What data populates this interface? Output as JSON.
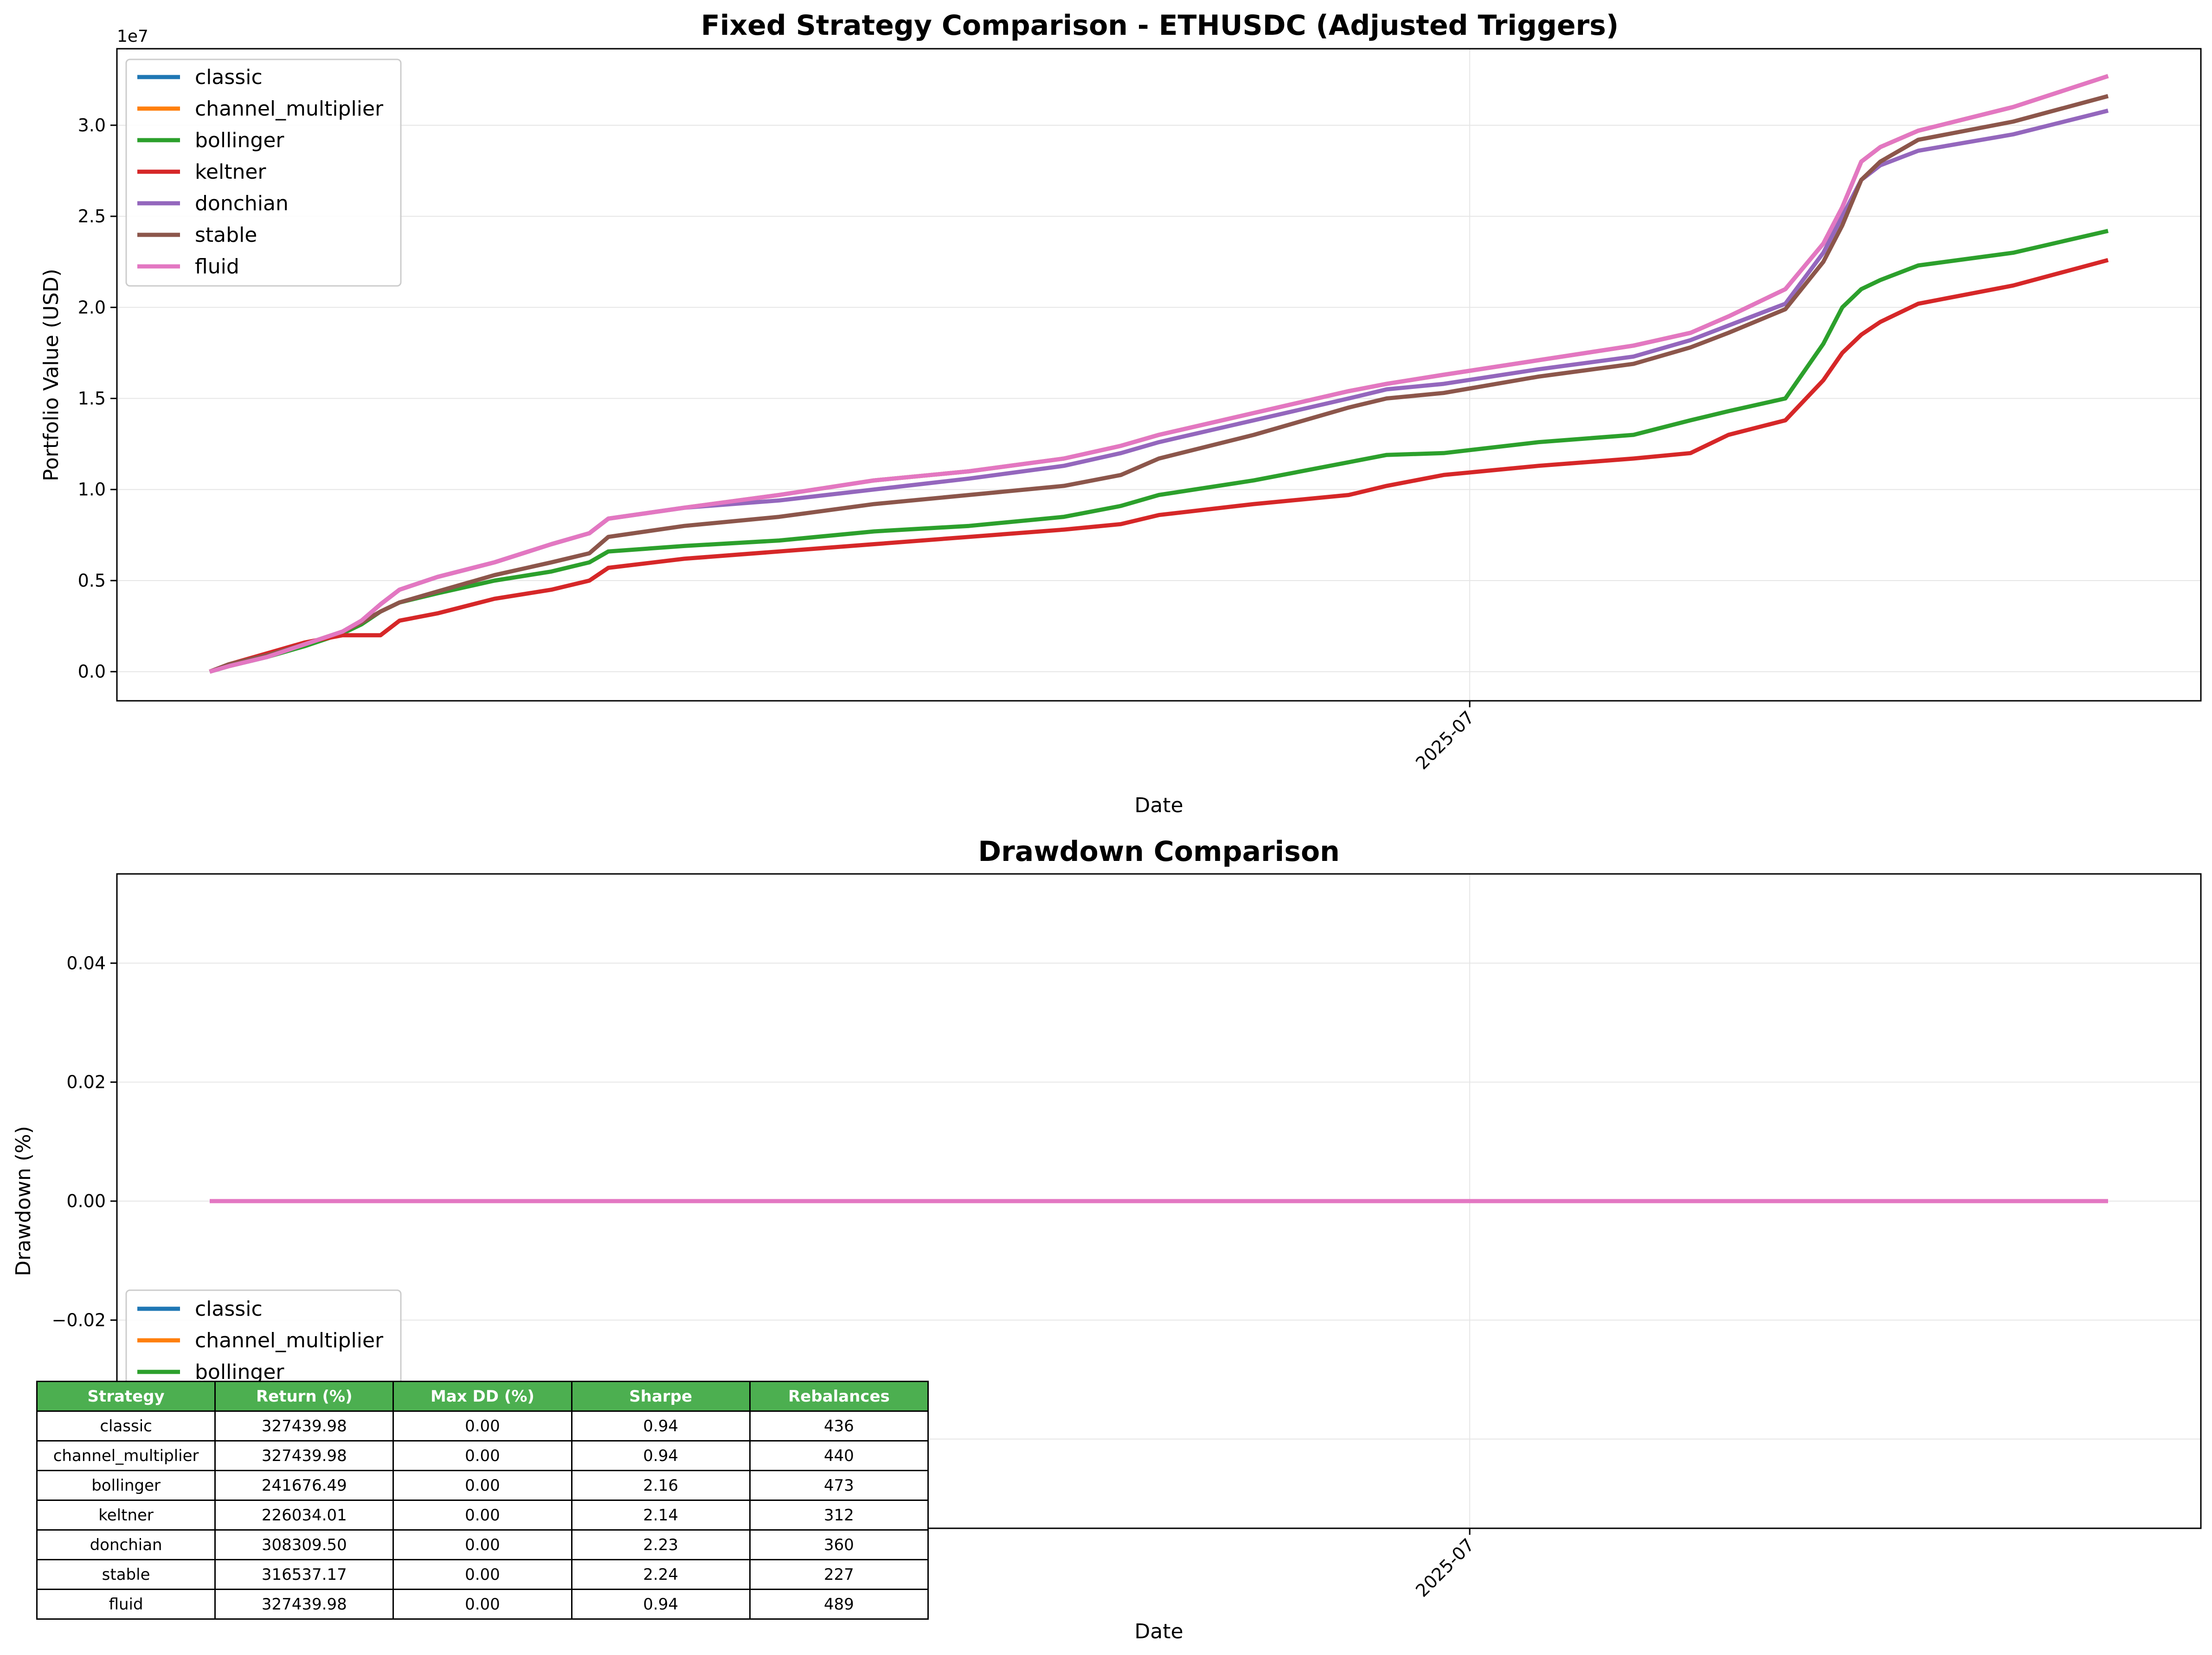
{
  "colors": {
    "classic": "#1f77b4",
    "channel_multiplier": "#ff7f0e",
    "bollinger": "#2ca02c",
    "keltner": "#d62728",
    "donchian": "#9467bd",
    "stable": "#8c564b",
    "fluid": "#e377c2",
    "table_header": "#4caf50",
    "grid": "#e6e6e6"
  },
  "chart_data": [
    {
      "type": "line",
      "title": "Fixed Strategy Comparison - ETHUSDC (Adjusted Triggers)",
      "xlabel": "Date",
      "ylabel": "Portfolio Value (USD)",
      "y_offset_label": "1e7",
      "x_tick_labels": [
        "2025-07"
      ],
      "y_ticks": [
        0,
        0.5,
        1.0,
        1.5,
        2.0,
        2.5,
        3.0
      ],
      "y_tick_labels": [
        "0.0",
        "0.5",
        "1.0",
        "1.5",
        "2.0",
        "2.5",
        "3.0"
      ],
      "ylim": [
        -0.16,
        3.42
      ],
      "y_unit": "1e7 USD",
      "xlim_fraction_of_date_span": [
        -0.048,
        1.05
      ],
      "x_tick_fraction": [
        0.665
      ],
      "grid": true,
      "legend_position": "upper left",
      "legend": [
        "classic",
        "channel_multiplier",
        "bollinger",
        "keltner",
        "donchian",
        "stable",
        "fluid"
      ],
      "x": [
        0,
        0.01,
        0.03,
        0.05,
        0.07,
        0.08,
        0.09,
        0.1,
        0.12,
        0.15,
        0.18,
        0.2,
        0.21,
        0.25,
        0.3,
        0.35,
        0.4,
        0.45,
        0.48,
        0.5,
        0.55,
        0.6,
        0.62,
        0.65,
        0.7,
        0.75,
        0.78,
        0.8,
        0.83,
        0.85,
        0.86,
        0.87,
        0.88,
        0.9,
        0.95,
        1.0
      ],
      "series": [
        {
          "name": "classic",
          "values": [
            0,
            0.03,
            0.08,
            0.15,
            0.22,
            0.28,
            0.37,
            0.45,
            0.52,
            0.6,
            0.7,
            0.76,
            0.84,
            0.9,
            0.97,
            1.05,
            1.1,
            1.17,
            1.24,
            1.3,
            1.42,
            1.54,
            1.58,
            1.63,
            1.71,
            1.79,
            1.86,
            1.95,
            2.1,
            2.35,
            2.55,
            2.8,
            2.88,
            2.97,
            3.1,
            3.27
          ],
          "hidden_by": "fluid"
        },
        {
          "name": "channel_multiplier",
          "values": [
            0,
            0.03,
            0.08,
            0.15,
            0.22,
            0.28,
            0.37,
            0.45,
            0.52,
            0.6,
            0.7,
            0.76,
            0.84,
            0.9,
            0.97,
            1.05,
            1.1,
            1.17,
            1.24,
            1.3,
            1.42,
            1.54,
            1.58,
            1.63,
            1.71,
            1.79,
            1.86,
            1.95,
            2.1,
            2.35,
            2.55,
            2.8,
            2.88,
            2.97,
            3.1,
            3.27
          ],
          "hidden_by": "fluid"
        },
        {
          "name": "bollinger",
          "values": [
            0,
            0.03,
            0.08,
            0.14,
            0.21,
            0.26,
            0.33,
            0.38,
            0.43,
            0.5,
            0.55,
            0.6,
            0.66,
            0.69,
            0.72,
            0.77,
            0.8,
            0.85,
            0.91,
            0.97,
            1.05,
            1.15,
            1.19,
            1.2,
            1.26,
            1.3,
            1.38,
            1.43,
            1.5,
            1.8,
            2.0,
            2.1,
            2.15,
            2.23,
            2.3,
            2.42
          ]
        },
        {
          "name": "keltner",
          "values": [
            0,
            0.04,
            0.1,
            0.16,
            0.2,
            0.2,
            0.2,
            0.28,
            0.32,
            0.4,
            0.45,
            0.5,
            0.57,
            0.62,
            0.66,
            0.7,
            0.74,
            0.78,
            0.81,
            0.86,
            0.92,
            0.97,
            1.02,
            1.08,
            1.13,
            1.17,
            1.2,
            1.3,
            1.38,
            1.6,
            1.75,
            1.85,
            1.92,
            2.02,
            2.12,
            2.26
          ]
        },
        {
          "name": "donchian",
          "values": [
            0,
            0.03,
            0.08,
            0.15,
            0.22,
            0.28,
            0.37,
            0.45,
            0.52,
            0.6,
            0.7,
            0.76,
            0.84,
            0.9,
            0.94,
            1.0,
            1.06,
            1.13,
            1.2,
            1.26,
            1.38,
            1.5,
            1.55,
            1.58,
            1.66,
            1.73,
            1.82,
            1.9,
            2.02,
            2.3,
            2.5,
            2.7,
            2.78,
            2.86,
            2.95,
            3.08
          ]
        },
        {
          "name": "stable",
          "values": [
            0,
            0.04,
            0.09,
            0.15,
            0.22,
            0.27,
            0.33,
            0.38,
            0.44,
            0.53,
            0.6,
            0.65,
            0.74,
            0.8,
            0.85,
            0.92,
            0.97,
            1.02,
            1.08,
            1.17,
            1.3,
            1.45,
            1.5,
            1.53,
            1.62,
            1.69,
            1.78,
            1.86,
            1.99,
            2.25,
            2.45,
            2.7,
            2.8,
            2.92,
            3.02,
            3.16
          ]
        },
        {
          "name": "fluid",
          "values": [
            0,
            0.03,
            0.08,
            0.15,
            0.22,
            0.28,
            0.37,
            0.45,
            0.52,
            0.6,
            0.7,
            0.76,
            0.84,
            0.9,
            0.97,
            1.05,
            1.1,
            1.17,
            1.24,
            1.3,
            1.42,
            1.54,
            1.58,
            1.63,
            1.71,
            1.79,
            1.86,
            1.95,
            2.1,
            2.35,
            2.55,
            2.8,
            2.88,
            2.97,
            3.1,
            3.27
          ]
        }
      ]
    },
    {
      "type": "line",
      "title": "Drawdown Comparison",
      "xlabel": "Date",
      "ylabel": "Drawdown (%)",
      "x_tick_labels": [
        "2025-07"
      ],
      "y_ticks": [
        -0.02,
        0,
        0.02,
        0.04
      ],
      "y_tick_labels": [
        "−0.02",
        "0.00",
        "0.02",
        "0.04"
      ],
      "ylim": [
        -0.055,
        0.055
      ],
      "grid": true,
      "legend_position": "lower left",
      "legend_visible": [
        "classic",
        "channel_multiplier",
        "bollinger"
      ],
      "x": [
        0,
        1
      ],
      "series": [
        {
          "name": "classic",
          "values": [
            0,
            0
          ]
        },
        {
          "name": "channel_multiplier",
          "values": [
            0,
            0
          ]
        },
        {
          "name": "bollinger",
          "values": [
            0,
            0
          ]
        },
        {
          "name": "keltner",
          "values": [
            0,
            0
          ]
        },
        {
          "name": "donchian",
          "values": [
            0,
            0
          ]
        },
        {
          "name": "stable",
          "values": [
            0,
            0
          ]
        },
        {
          "name": "fluid",
          "values": [
            0,
            0
          ]
        }
      ]
    },
    {
      "type": "table",
      "columns": [
        "Strategy",
        "Return (%)",
        "Max DD (%)",
        "Sharpe",
        "Rebalances"
      ],
      "rows": [
        [
          "classic",
          "327439.98",
          "0.00",
          "0.94",
          "436"
        ],
        [
          "channel_multiplier",
          "327439.98",
          "0.00",
          "0.94",
          "440"
        ],
        [
          "bollinger",
          "241676.49",
          "0.00",
          "2.16",
          "473"
        ],
        [
          "keltner",
          "226034.01",
          "0.00",
          "2.14",
          "312"
        ],
        [
          "donchian",
          "308309.50",
          "0.00",
          "2.23",
          "360"
        ],
        [
          "stable",
          "316537.17",
          "0.00",
          "2.24",
          "227"
        ],
        [
          "fluid",
          "327439.98",
          "0.00",
          "0.94",
          "489"
        ]
      ]
    }
  ]
}
